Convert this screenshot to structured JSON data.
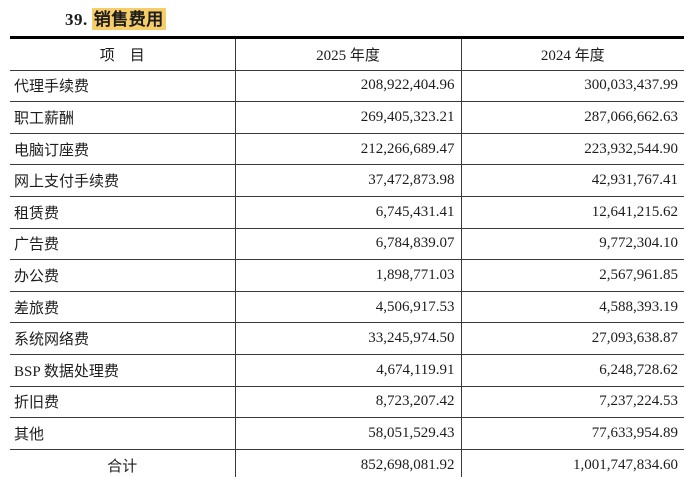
{
  "title": {
    "number": "39.",
    "text": "销售费用",
    "highlight_color": "#f7cd69"
  },
  "table": {
    "columns": [
      {
        "label": "项　目"
      },
      {
        "label": "2025 年度"
      },
      {
        "label": "2024 年度"
      }
    ],
    "rows": [
      {
        "item": "代理手续费",
        "y2025": "208,922,404.96",
        "y2024": "300,033,437.99"
      },
      {
        "item": "职工薪酬",
        "y2025": "269,405,323.21",
        "y2024": "287,066,662.63"
      },
      {
        "item": "电脑订座费",
        "y2025": "212,266,689.47",
        "y2024": "223,932,544.90"
      },
      {
        "item": "网上支付手续费",
        "y2025": "37,472,873.98",
        "y2024": "42,931,767.41"
      },
      {
        "item": "租赁费",
        "y2025": "6,745,431.41",
        "y2024": "12,641,215.62"
      },
      {
        "item": "广告费",
        "y2025": "6,784,839.07",
        "y2024": "9,772,304.10"
      },
      {
        "item": "办公费",
        "y2025": "1,898,771.03",
        "y2024": "2,567,961.85"
      },
      {
        "item": "差旅费",
        "y2025": "4,506,917.53",
        "y2024": "4,588,393.19"
      },
      {
        "item": "系统网络费",
        "y2025": "33,245,974.50",
        "y2024": "27,093,638.87"
      },
      {
        "item": "BSP 数据处理费",
        "y2025": "4,674,119.91",
        "y2024": "6,248,728.62"
      },
      {
        "item": "折旧费",
        "y2025": "8,723,207.42",
        "y2024": "7,237,224.53"
      },
      {
        "item": "其他",
        "y2025": "58,051,529.43",
        "y2024": "77,633,954.89"
      }
    ],
    "total_row": {
      "item": "合计",
      "y2025": "852,698,081.92",
      "y2024": "1,001,747,834.60"
    }
  }
}
